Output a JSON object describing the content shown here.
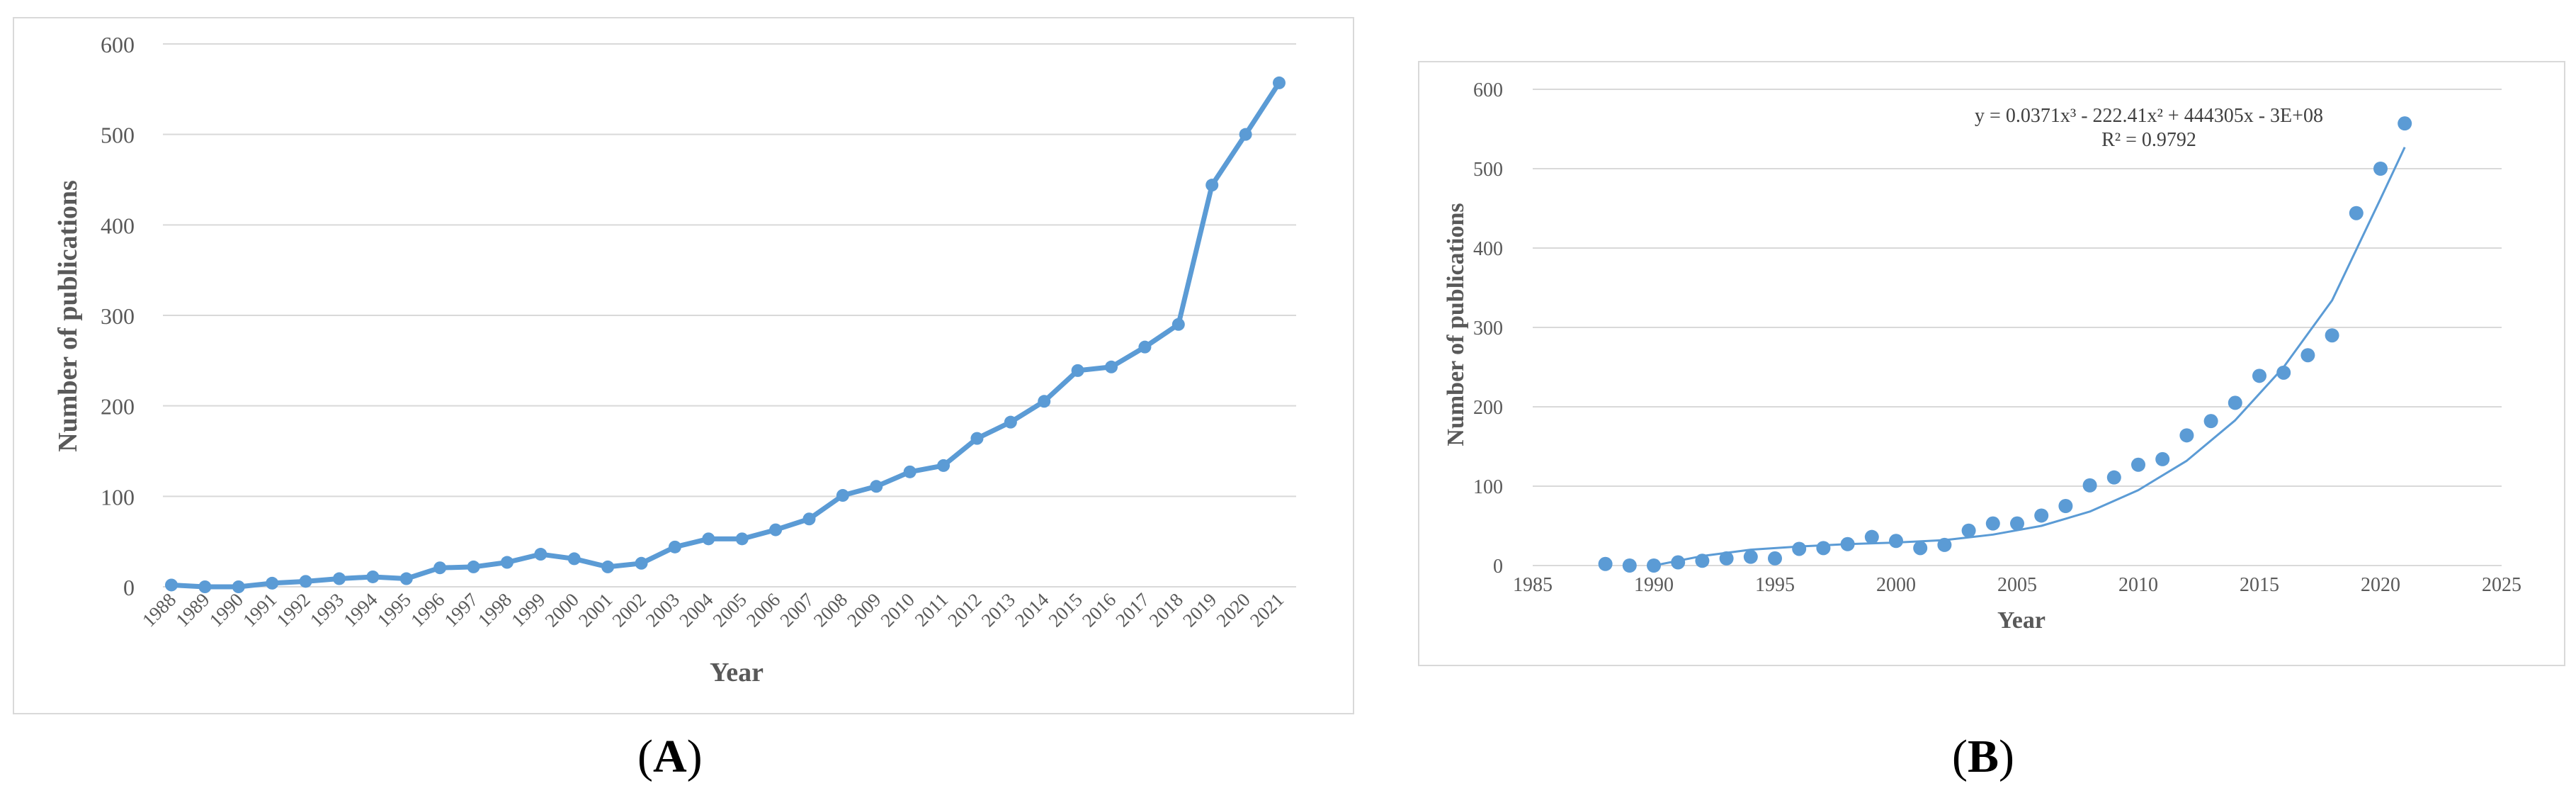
{
  "panels": {
    "a_label": "A",
    "b_label": "B",
    "open_paren": "(",
    "close_paren": ")"
  },
  "chart_data": [
    {
      "type": "line",
      "panel": "A",
      "xlabel": "Year",
      "ylabel": "Number of publications",
      "ylim": [
        0,
        600
      ],
      "yticks": [
        0,
        100,
        200,
        300,
        400,
        500,
        600
      ],
      "grid": true,
      "color": "#5b9bd5",
      "categories": [
        "1988",
        "1989",
        "1990",
        "1991",
        "1992",
        "1993",
        "1994",
        "1995",
        "1996",
        "1997",
        "1998",
        "1999",
        "2000",
        "2001",
        "2002",
        "2003",
        "2004",
        "2005",
        "2006",
        "2007",
        "2008",
        "2009",
        "2010",
        "2011",
        "2012",
        "2013",
        "2014",
        "2015",
        "2016",
        "2017",
        "2018",
        "2019",
        "2020",
        "2021"
      ],
      "values": [
        2,
        0,
        0,
        4,
        6,
        9,
        11,
        9,
        21,
        22,
        27,
        36,
        31,
        22,
        26,
        44,
        53,
        53,
        63,
        75,
        101,
        111,
        127,
        134,
        164,
        182,
        205,
        239,
        243,
        265,
        290,
        444,
        500,
        557
      ]
    },
    {
      "type": "scatter",
      "panel": "B",
      "xlabel": "Year",
      "ylabel": "Number of publications",
      "xlim": [
        1985,
        2025
      ],
      "xticks": [
        1985,
        1990,
        1995,
        2000,
        2005,
        2010,
        2015,
        2020,
        2025
      ],
      "ylim": [
        0,
        600
      ],
      "yticks": [
        0,
        100,
        200,
        300,
        400,
        500,
        600
      ],
      "grid": true,
      "color": "#5b9bd5",
      "x": [
        1988,
        1989,
        1990,
        1991,
        1992,
        1993,
        1994,
        1995,
        1996,
        1997,
        1998,
        1999,
        2000,
        2001,
        2002,
        2003,
        2004,
        2005,
        2006,
        2007,
        2008,
        2009,
        2010,
        2011,
        2012,
        2013,
        2014,
        2015,
        2016,
        2017,
        2018,
        2019,
        2020,
        2021
      ],
      "y": [
        2,
        0,
        0,
        4,
        6,
        9,
        11,
        9,
        21,
        22,
        27,
        36,
        31,
        22,
        26,
        44,
        53,
        53,
        63,
        75,
        101,
        111,
        127,
        134,
        164,
        182,
        205,
        239,
        243,
        265,
        290,
        444,
        500,
        557
      ],
      "trendline": {
        "type": "polynomial",
        "order": 3,
        "equation": "y = 0.0371x³ - 222.41x² + 444305x - 3E+08",
        "r_squared": "R² = 0.9792",
        "x": [
          1990,
          1992,
          1994,
          1996,
          1998,
          2000,
          2002,
          2004,
          2006,
          2008,
          2010,
          2012,
          2014,
          2016,
          2018,
          2020,
          2021
        ],
        "y": [
          0,
          12,
          20,
          24,
          27,
          29,
          32,
          39,
          50,
          68,
          95,
          132,
          183,
          250,
          334,
          462,
          527
        ]
      }
    }
  ]
}
